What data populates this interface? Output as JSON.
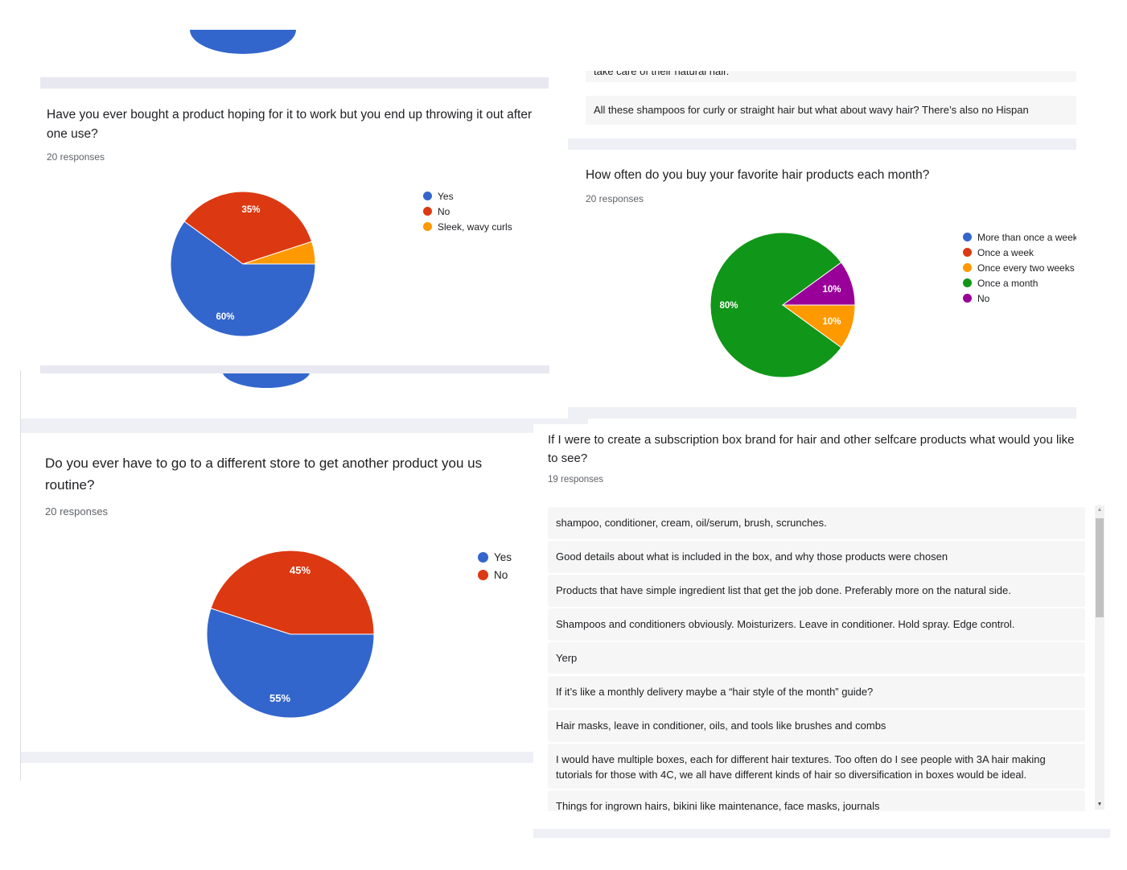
{
  "top_left": {
    "chart_data": {
      "type": "pie",
      "values": [],
      "note": "partial pie visible, cut off"
    }
  },
  "card1": {
    "title": "Have you ever bought a product hoping for it to work but you end up throwing it out after one use?",
    "responses": "20 responses",
    "legend": [
      "Yes",
      "No",
      "Sleek, wavy curls"
    ],
    "colors": [
      "#3366cc",
      "#dc3912",
      "#ff9900"
    ],
    "labels": [
      "60%",
      "35%",
      ""
    ],
    "chart_data": {
      "type": "pie",
      "categories": [
        "Yes",
        "No",
        "Sleek, wavy curls"
      ],
      "values": [
        60,
        35,
        5
      ],
      "legend_position": "right"
    }
  },
  "card2": {
    "title_line1": "Do you ever have to go to a different store to get another product you us",
    "title_line2": "routine?",
    "responses": "20 responses",
    "legend": [
      "Yes",
      "No"
    ],
    "colors": [
      "#3366cc",
      "#dc3912"
    ],
    "labels": [
      "55%",
      "45%"
    ],
    "chart_data": {
      "type": "pie",
      "categories": [
        "Yes",
        "No"
      ],
      "values": [
        55,
        45
      ],
      "legend_position": "right"
    }
  },
  "top_right": {
    "text_partial": "take care of their natural hair.",
    "answer": "All these shampoos for curly or straight hair but what about wavy hair? There’s also no Hispan"
  },
  "card3": {
    "title": "How often do you buy your favorite hair products each month?",
    "responses": "20 responses",
    "legend": [
      "More than once a week",
      "Once a week",
      "Once every two weeks",
      "Once a month",
      "No"
    ],
    "colors": [
      "#3366cc",
      "#dc3912",
      "#ff9900",
      "#109618",
      "#990099"
    ],
    "labels": [
      "",
      "",
      "10%",
      "80%",
      "10%"
    ],
    "chart_data": {
      "type": "pie",
      "categories": [
        "More than once a week",
        "Once a week",
        "Once every two weeks",
        "Once a month",
        "No"
      ],
      "values": [
        0,
        0,
        10,
        80,
        10
      ],
      "legend_position": "right"
    }
  },
  "card4": {
    "title_line1": "If I were to create a subscription box brand for hair and other selfcare products what would you like",
    "title_line2": "to see?",
    "responses": "19 responses",
    "answers": [
      "shampoo, conditioner, cream, oil/serum, brush, scrunches.",
      "Good details about what is included in the box, and why those products were chosen",
      "Products that have simple ingredient list that get the job done. Preferably more on the natural side.",
      "Shampoos and conditioners obviously. Moisturizers. Leave in conditioner. Hold spray. Edge control.",
      "Yerp",
      "If it’s like a monthly delivery maybe a “hair style of the month” guide?",
      "Hair masks, leave in conditioner, oils, and tools like brushes and combs",
      "I would have multiple boxes, each for different hair textures. Too often do I see people with 3A hair making tutorials for those with 4C, we all have different kinds of hair so diversification in boxes would be ideal.",
      "Things for ingrown hairs, bikini like maintenance, face masks, journals"
    ],
    "scroll_up": "▲",
    "scroll_down": "▼"
  }
}
